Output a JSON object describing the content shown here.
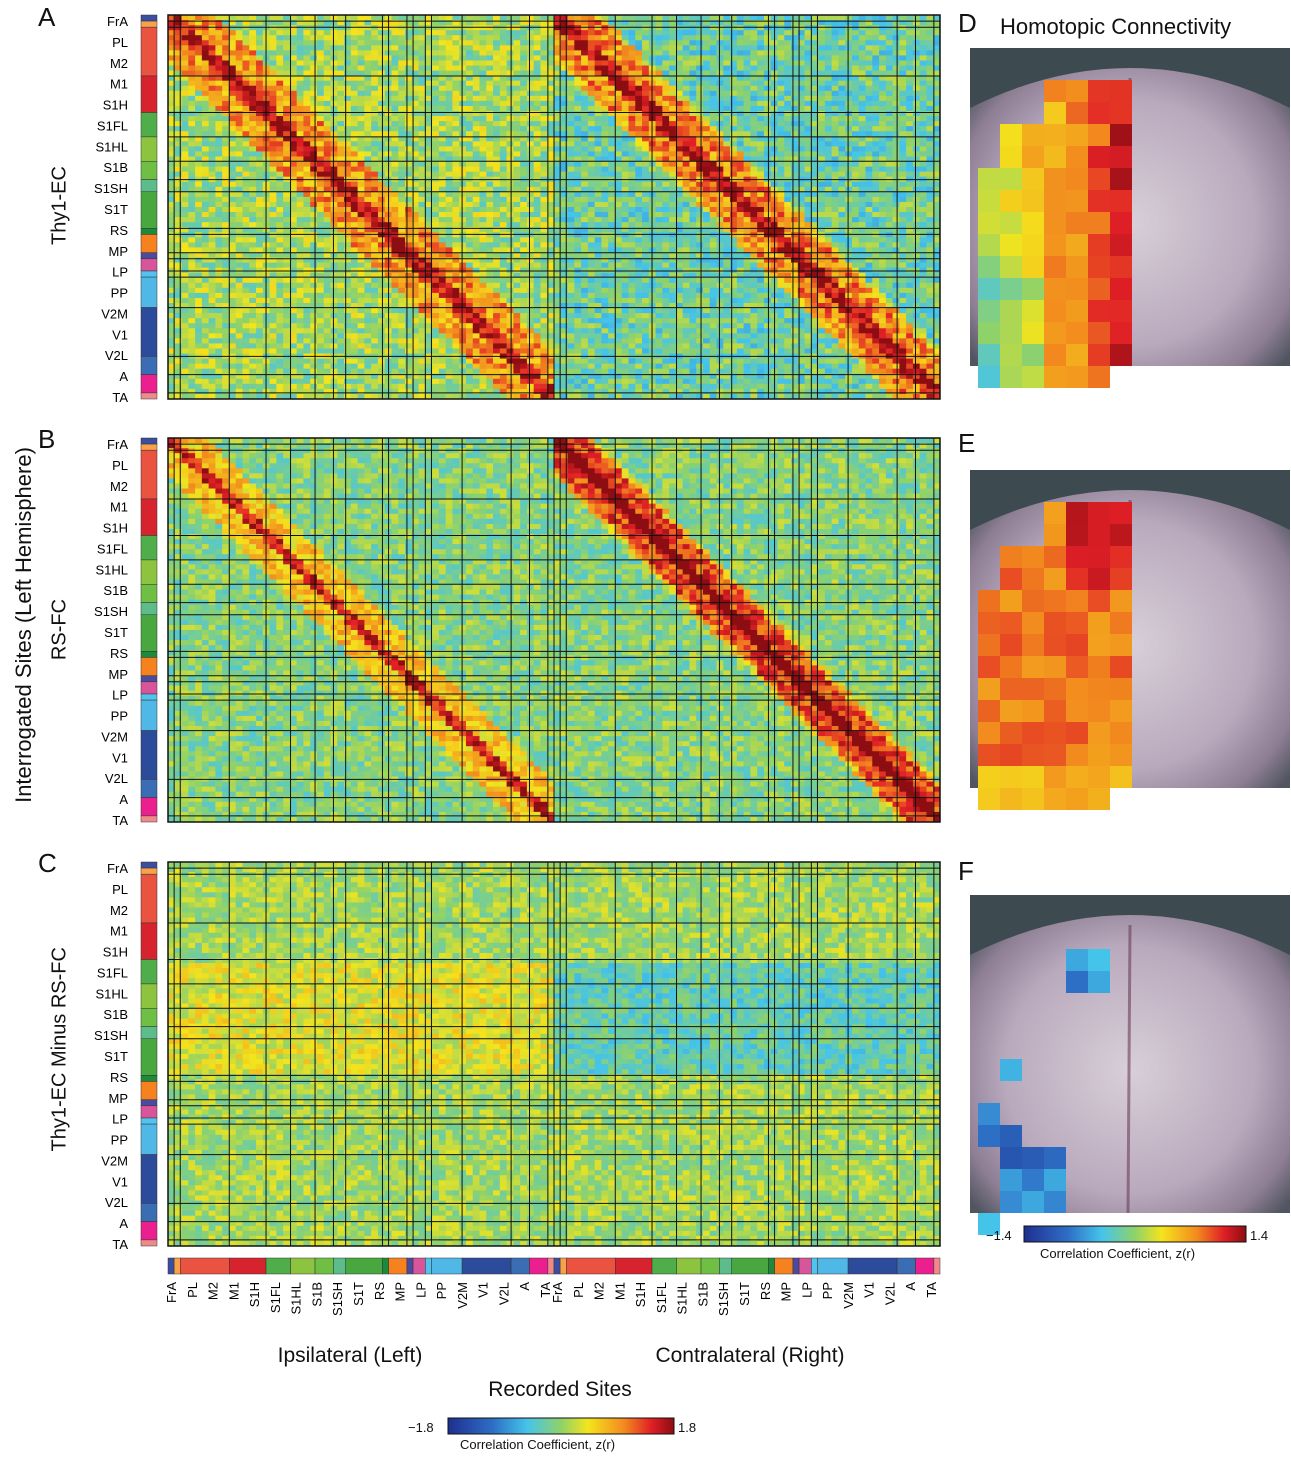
{
  "panels": {
    "A": "A",
    "B": "B",
    "C": "C",
    "D": "D",
    "E": "E",
    "F": "F"
  },
  "row_titles": [
    "Thy1-EC",
    "RS-FC",
    "Thy1-EC Minus RS-FC"
  ],
  "y_title": "Interrogated Sites (Left Hemisphere)",
  "x_title": "Recorded Sites",
  "x_groups": [
    "Ipsilateral (Left)",
    "Contralateral (Right)"
  ],
  "homotopic_title": "Homotopic Connectivity",
  "region_labels": [
    "FrA",
    "PL",
    "M2",
    "M1",
    "S1H",
    "S1FL",
    "S1HL",
    "S1B",
    "S1SH",
    "S1T",
    "RS",
    "MP",
    "LP",
    "PP",
    "V2M",
    "V1",
    "V2L",
    "A",
    "TA"
  ],
  "region_colors": {
    "FrA": "#3b4ea0",
    "PL": "#f7a14a",
    "M2": "#e9533f",
    "M1": "#d7232e",
    "S1H": "#4fae4a",
    "S1FL": "#8cc43f",
    "S1HL": "#6fbf44",
    "S1B": "#5dbd8a",
    "S1SH": "#48a83f",
    "S1T": "#1c8a3a",
    "RS": "#f5821f",
    "MP": "#4c4a9e",
    "LP": "#d9559b",
    "PP": "#52c3ee",
    "V2M": "#4fb8e6",
    "V1": "#2d4b9b",
    "V2L": "#3a6db4",
    "A": "#ec1f8e",
    "TA": "#f08a8a"
  },
  "chart_data": [
    {
      "type": "heatmap",
      "panel": "A",
      "row_label": "Thy1-EC",
      "rows": [
        "FrA",
        "PL",
        "M2",
        "M1",
        "S1H",
        "S1FL",
        "S1HL",
        "S1B",
        "S1SH",
        "S1T",
        "RS",
        "MP",
        "LP",
        "PP",
        "V2M",
        "V1",
        "V2L",
        "A",
        "TA"
      ],
      "columns": [
        "FrA",
        "PL",
        "M2",
        "M1",
        "S1H",
        "S1FL",
        "S1HL",
        "S1B",
        "S1SH",
        "S1T",
        "RS",
        "MP",
        "LP",
        "PP",
        "V2M",
        "V1",
        "V2L",
        "A",
        "TA",
        "FrA",
        "PL",
        "M2",
        "M1",
        "S1H",
        "S1FL",
        "S1HL",
        "S1B",
        "S1SH",
        "S1T",
        "RS",
        "MP",
        "LP",
        "PP",
        "V2M",
        "V1",
        "V2L",
        "A",
        "TA"
      ],
      "colorbar": {
        "min": -1.8,
        "max": 1.8,
        "label": "Correlation Coefficient, z(r)"
      }
    },
    {
      "type": "heatmap",
      "panel": "B",
      "row_label": "RS-FC",
      "colorbar": {
        "min": -1.8,
        "max": 1.8,
        "label": "Correlation Coefficient, z(r)"
      }
    },
    {
      "type": "heatmap",
      "panel": "C",
      "row_label": "Thy1-EC Minus RS-FC",
      "colorbar": {
        "min": -1.8,
        "max": 1.8,
        "label": "Correlation Coefficient, z(r)"
      }
    },
    {
      "type": "heatmap",
      "panel": "D-F",
      "title": "Homotopic Connectivity",
      "colorbar": {
        "min": -1.4,
        "max": 1.4,
        "label": "Correlation Coefficient, z(r)"
      }
    }
  ],
  "colorbars": {
    "main": {
      "min_label": "−1.8",
      "max_label": "1.8",
      "label": "Correlation Coefficient, z(r)"
    },
    "homotopic": {
      "min_label": "−1.4",
      "max_label": "1.4",
      "label": "Correlation Coefficient, z(r)"
    }
  }
}
